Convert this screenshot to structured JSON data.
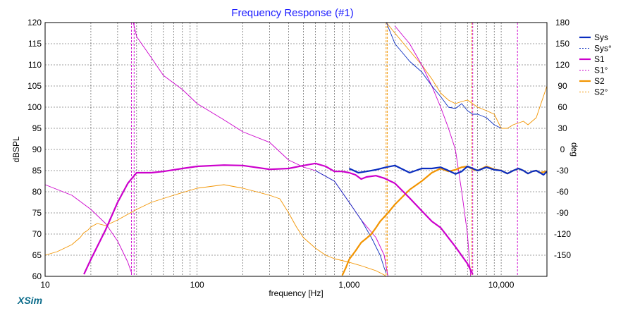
{
  "app": {
    "brand": "XSim"
  },
  "chart_data": {
    "type": "line",
    "title": "Frequency Response (#1)",
    "xlabel": "frequency [Hz]",
    "ylabel": "dBSPL",
    "y2label": "deg",
    "x_scale": "log",
    "xlim": [
      10,
      20000
    ],
    "ylim": [
      60,
      120
    ],
    "y2lim": [
      -180,
      180
    ],
    "grid": true,
    "legend_position": "top-right",
    "x_ticks": [
      {
        "value": 10,
        "label": "10"
      },
      {
        "value": 100,
        "label": "100"
      },
      {
        "value": 1000,
        "label": "1,000"
      },
      {
        "value": 10000,
        "label": "10,000"
      }
    ],
    "y_ticks": [
      "120",
      "115",
      "110",
      "105",
      "100",
      "95",
      "90",
      "85",
      "80",
      "75",
      "70",
      "65",
      "60"
    ],
    "y2_ticks": [
      "180",
      "150",
      "120",
      "90",
      "60",
      "30",
      "0",
      "-30",
      "-60",
      "-90",
      "-120",
      "-150"
    ],
    "series": [
      {
        "name": "Sys",
        "color": "#0a2dbf",
        "axis": "y",
        "style": "solid",
        "x": [
          1000,
          1150,
          1300,
          1500,
          1750,
          2000,
          2500,
          3000,
          3500,
          4000,
          4500,
          5000,
          5500,
          6000,
          6500,
          7000,
          8000,
          9000,
          10000,
          11000,
          12000,
          13000,
          14000,
          15000,
          16000,
          17000,
          18000,
          19000,
          20000
        ],
        "y": [
          85.5,
          84.5,
          84.8,
          85.2,
          85.8,
          86.2,
          84.5,
          85.5,
          85.5,
          85.8,
          85.0,
          84.2,
          84.8,
          86.0,
          85.5,
          85.0,
          85.8,
          85.2,
          85.0,
          84.3,
          85.0,
          85.5,
          85.0,
          84.3,
          84.8,
          85.0,
          84.5,
          84.0,
          84.8
        ]
      },
      {
        "name": "Sys°",
        "color": "#0a2dbf",
        "axis": "y2",
        "style": "dashed",
        "x": [
          600,
          800,
          1000,
          1200,
          1400,
          1600,
          1700,
          1750,
          1760,
          2000,
          2500,
          3000,
          3500,
          4000,
          4500,
          5000,
          5500,
          6000,
          6500,
          7000,
          8000,
          9000,
          10000
        ],
        "y": [
          -30,
          -45,
          -75,
          -100,
          -125,
          -150,
          -168,
          -175,
          180,
          150,
          125,
          110,
          90,
          75,
          60,
          58,
          65,
          55,
          50,
          50,
          45,
          35,
          30
        ]
      },
      {
        "name": "S1",
        "color": "#cc00cc",
        "axis": "y",
        "style": "solid",
        "x": [
          18,
          20,
          25,
          30,
          35,
          40,
          50,
          60,
          80,
          100,
          150,
          200,
          300,
          400,
          500,
          600,
          700,
          800,
          900,
          1000,
          1100,
          1200,
          1300,
          1500,
          1700,
          2000,
          2500,
          3000,
          3500,
          4000,
          5000,
          6000,
          6500
        ],
        "y": [
          60.5,
          64,
          71,
          77.5,
          82,
          84.5,
          84.5,
          84.8,
          85.5,
          86,
          86.3,
          86.2,
          85.3,
          85.5,
          86.2,
          86.7,
          86.0,
          84.8,
          84.8,
          84.5,
          84.0,
          83.0,
          83.5,
          83.8,
          83.2,
          82.0,
          78.5,
          75.5,
          73.0,
          71.5,
          67.0,
          63.0,
          60.5
        ]
      },
      {
        "name": "S1°",
        "color": "#cc00cc",
        "axis": "y2",
        "style": "dashed",
        "x": [
          10,
          15,
          20,
          25,
          30,
          35,
          37,
          38,
          40,
          50,
          60,
          80,
          100,
          150,
          200,
          300,
          400,
          500,
          600,
          800,
          1000,
          1200,
          1500,
          1700,
          1800,
          2000,
          2500,
          3000,
          3500,
          4000,
          4500,
          5000,
          5500,
          6000,
          6300
        ],
        "y": [
          -50,
          -65,
          -85,
          -105,
          -130,
          -160,
          -175,
          180,
          160,
          130,
          105,
          85,
          65,
          42,
          25,
          10,
          -15,
          -25,
          -30,
          -45,
          -75,
          -100,
          -125,
          -150,
          -180,
          175,
          150,
          120,
          90,
          60,
          30,
          0,
          -60,
          -120,
          -180
        ]
      },
      {
        "name": "S2",
        "color": "#f29400",
        "axis": "y",
        "style": "solid",
        "x": [
          900,
          950,
          1000,
          1100,
          1200,
          1300,
          1400,
          1500,
          1600,
          1800,
          2000,
          2500,
          3000,
          3500,
          4000,
          4500,
          5000,
          5500,
          6000,
          6500,
          7000,
          8000,
          9000,
          10000,
          11000,
          12000,
          13000,
          14000,
          15000,
          16000,
          17000,
          18000,
          20000
        ],
        "y": [
          60.2,
          62,
          64,
          66,
          68,
          69,
          70,
          71.5,
          73,
          75,
          77,
          80.5,
          82.5,
          84.5,
          85.5,
          84.8,
          85.2,
          85.8,
          86.0,
          85.3,
          85.0,
          86.0,
          85.3,
          85.0,
          84.3,
          85.0,
          85.5,
          85.0,
          84.3,
          84.8,
          85.0,
          84.5,
          84.8
        ]
      },
      {
        "name": "S2°",
        "color": "#f29400",
        "axis": "y2",
        "style": "dashed",
        "x": [
          10,
          12,
          15,
          17,
          18,
          19,
          20,
          22,
          25,
          30,
          40,
          50,
          70,
          100,
          150,
          200,
          300,
          350,
          400,
          450,
          500,
          600,
          700,
          800,
          1000,
          1200,
          1500,
          1700,
          1750,
          1760,
          2000,
          2500,
          3000,
          3500,
          4000,
          4500,
          5000,
          5500,
          6000,
          7000,
          8000,
          9000,
          10000,
          11000,
          12000,
          14000,
          15000,
          17000,
          20000
        ],
        "y": [
          -150,
          -145,
          -135,
          -125,
          -118,
          -115,
          -110,
          -105,
          -108,
          -100,
          -85,
          -75,
          -65,
          -55,
          -50,
          -55,
          -65,
          -70,
          -90,
          -110,
          -125,
          -140,
          -150,
          -155,
          -160,
          -165,
          -172,
          -178,
          -180,
          180,
          165,
          140,
          120,
          100,
          80,
          70,
          65,
          68,
          70,
          60,
          55,
          50,
          30,
          30,
          35,
          40,
          35,
          45,
          90
        ]
      }
    ],
    "vlines": {
      "magenta": [
        37,
        38.5,
        6500,
        12800
      ],
      "orange": [
        1750,
        1780,
        6400
      ]
    }
  }
}
